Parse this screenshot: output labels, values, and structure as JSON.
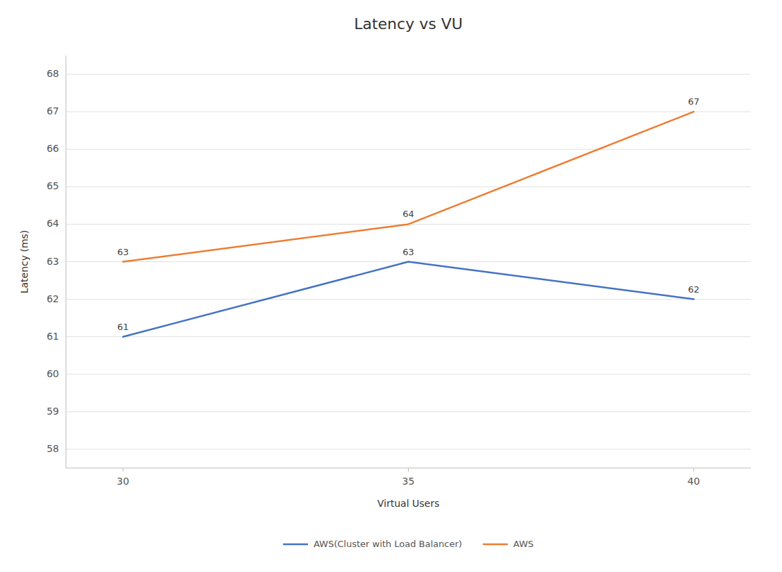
{
  "chart_data": {
    "type": "line",
    "title": "Latency vs VU",
    "x_label": "Virtual Users",
    "y_label": "Latency (ms)",
    "x": [
      30,
      35,
      40
    ],
    "series": [
      {
        "name": "AWS(Cluster with Load Balancer)",
        "color": "#4472C4",
        "values": [
          61,
          63,
          62
        ]
      },
      {
        "name": "AWS",
        "color": "#ED7D31",
        "values": [
          63,
          64,
          67
        ]
      }
    ],
    "xlim": [
      29,
      41
    ],
    "xticks": [
      30,
      35,
      40
    ],
    "ylim": [
      57.5,
      68.5
    ],
    "yticks": [
      58,
      59,
      60,
      61,
      62,
      63,
      64,
      65,
      66,
      67,
      68
    ],
    "grid": true,
    "legend": "bottom",
    "data_labels": true
  }
}
